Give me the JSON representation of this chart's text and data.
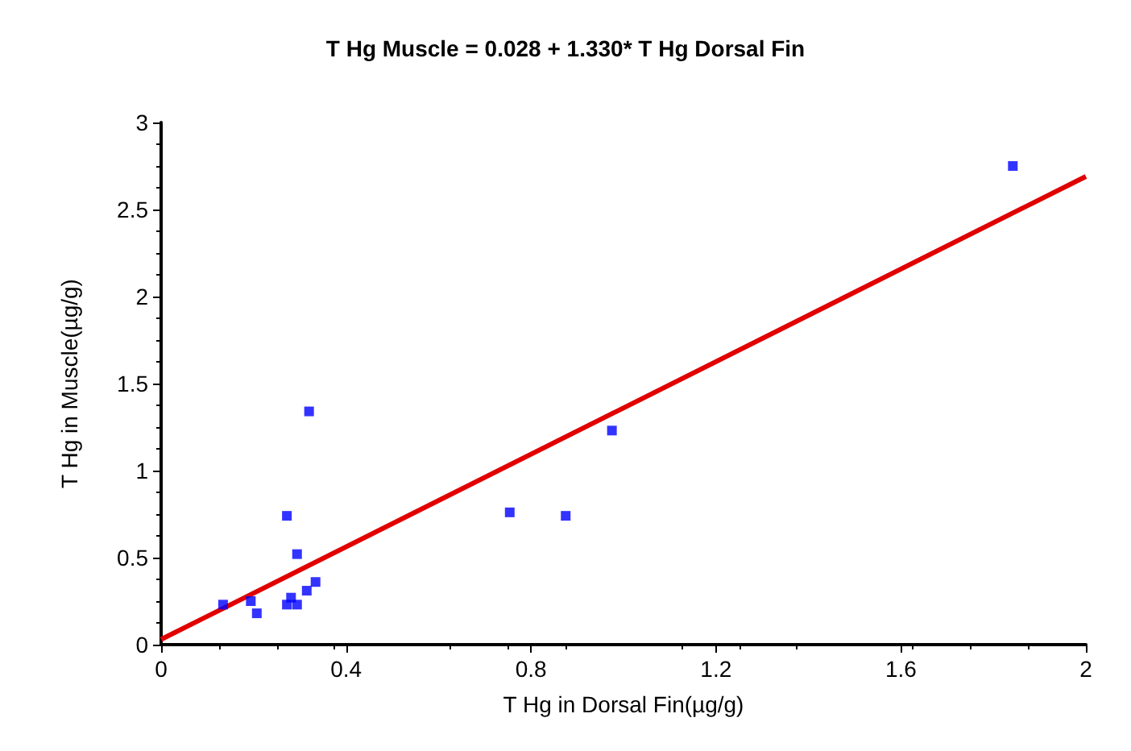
{
  "chart_data": {
    "type": "scatter",
    "title": "T Hg Muscle = 0.028 + 1.330* T Hg Dorsal Fin",
    "xlabel": "T Hg in Dorsal Fin(µg/g)",
    "ylabel": "T Hg in Muscle(µg/g)",
    "xlim": [
      0,
      2
    ],
    "xticks": [
      0,
      0.4,
      0.8,
      1.2,
      1.6,
      2
    ],
    "ylim": [
      0,
      3
    ],
    "yticks": [
      0,
      0.5,
      1,
      1.5,
      2,
      2.5,
      3
    ],
    "grid": false,
    "series": [
      {
        "color": "#0000ff",
        "marker": "square",
        "x": [
          0.134,
          0.194,
          0.207,
          0.32,
          0.272,
          0.294,
          0.272,
          0.281,
          0.294,
          0.315,
          0.334,
          0.754,
          0.875,
          0.975,
          1.842
        ],
        "values": [
          0.23,
          0.25,
          0.18,
          1.34,
          0.74,
          0.52,
          0.23,
          0.27,
          0.23,
          0.31,
          0.36,
          0.76,
          0.74,
          1.23,
          2.75
        ]
      },
      {
        "type": "line",
        "color": "#e00000",
        "marker": "none",
        "line_style": "solid",
        "x": [
          0,
          2
        ],
        "values": [
          0.03,
          2.69
        ]
      }
    ]
  }
}
